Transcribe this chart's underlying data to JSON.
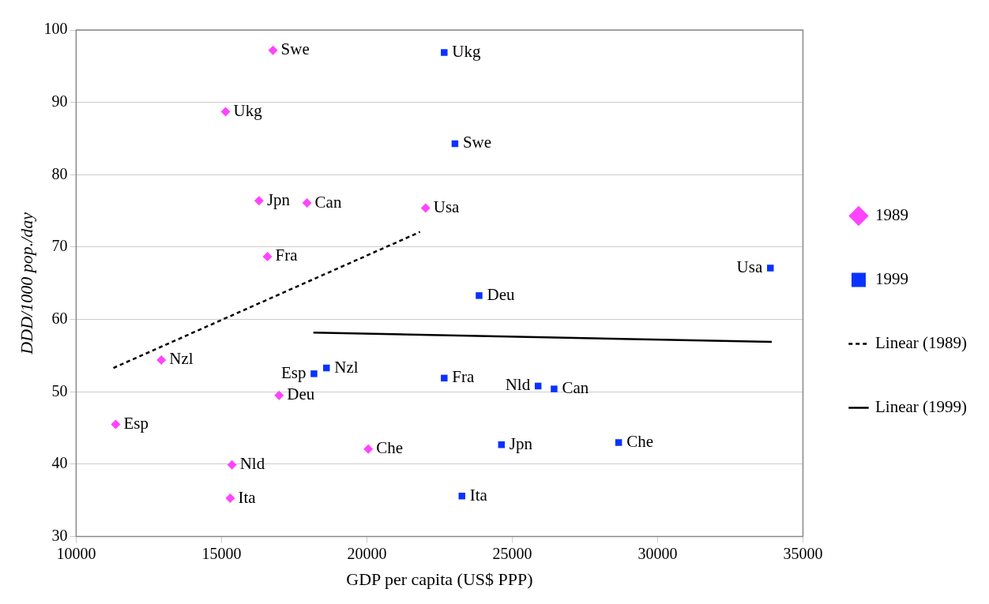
{
  "chart_data": {
    "type": "scatter",
    "xlabel": "GDP per capita (US$ PPP)",
    "ylabel": "DDD/1000 pop./day",
    "xlim": [
      10000,
      35000
    ],
    "xticks": [
      10000,
      15000,
      20000,
      25000,
      30000,
      35000
    ],
    "ylim": [
      30,
      100
    ],
    "yticks": [
      30,
      40,
      50,
      60,
      70,
      80,
      90,
      100
    ],
    "grid": "y",
    "legend": "right",
    "series": [
      {
        "name": "1989",
        "marker": "diamond",
        "color": "#ff44ff",
        "x": [
          16770,
          15140,
          16290,
          17940,
          22020,
          16580,
          12930,
          16980,
          11360,
          20050,
          15360,
          15300
        ],
        "values": [
          97.2,
          88.7,
          76.4,
          76.1,
          75.4,
          68.7,
          54.4,
          49.5,
          45.5,
          42.1,
          39.9,
          35.3
        ]
      },
      {
        "name": "1999",
        "marker": "square",
        "color": "#0a32ff",
        "x": [
          22660,
          23030,
          33880,
          23860,
          18610,
          18180,
          22660,
          25890,
          26440,
          28660,
          24630,
          23270
        ],
        "values": [
          96.9,
          84.3,
          67.1,
          63.3,
          53.3,
          52.5,
          51.9,
          50.8,
          50.4,
          43.0,
          42.7,
          35.6
        ]
      },
      {
        "name": "Linear (1989)",
        "type": "line",
        "marker": "none",
        "line_style": "dashed",
        "color": "#000000",
        "x": [
          11280,
          21830
        ],
        "values": [
          53.3,
          72.1
        ]
      },
      {
        "name": "Linear (1999)",
        "type": "line",
        "marker": "none",
        "line_style": "solid",
        "color": "#000000",
        "x": [
          18160,
          33930
        ],
        "values": [
          58.2,
          56.9
        ]
      }
    ],
    "annotations": [
      {
        "text": "Swe",
        "x": 16770,
        "y": 97.2
      },
      {
        "text": "Ukg",
        "x": 15140,
        "y": 88.7
      },
      {
        "text": "Jpn",
        "x": 16290,
        "y": 76.4
      },
      {
        "text": "Can",
        "x": 17940,
        "y": 76.1
      },
      {
        "text": "Usa",
        "x": 22020,
        "y": 75.4
      },
      {
        "text": "Fra",
        "x": 16580,
        "y": 68.7
      },
      {
        "text": "Nzl",
        "x": 12930,
        "y": 54.4
      },
      {
        "text": "Deu",
        "x": 16980,
        "y": 49.5
      },
      {
        "text": "Esp",
        "x": 11360,
        "y": 45.5
      },
      {
        "text": "Che",
        "x": 20050,
        "y": 42.1
      },
      {
        "text": "Nld",
        "x": 15360,
        "y": 39.9
      },
      {
        "text": "Ita",
        "x": 15300,
        "y": 35.3
      },
      {
        "text": "Ukg",
        "x": 22660,
        "y": 96.9
      },
      {
        "text": "Swe",
        "x": 23030,
        "y": 84.3
      },
      {
        "text": "Usa",
        "x": 33880,
        "y": 67.1
      },
      {
        "text": "Deu",
        "x": 23860,
        "y": 63.3
      },
      {
        "text": "Nzl",
        "x": 18610,
        "y": 53.3
      },
      {
        "text": "Esp",
        "x": 18180,
        "y": 52.5
      },
      {
        "text": "Fra",
        "x": 22660,
        "y": 51.9
      },
      {
        "text": "Nld",
        "x": 25890,
        "y": 50.8
      },
      {
        "text": "Can",
        "x": 26440,
        "y": 50.4
      },
      {
        "text": "Che",
        "x": 28660,
        "y": 43.0
      },
      {
        "text": "Jpn",
        "x": 24630,
        "y": 42.7
      },
      {
        "text": "Ita",
        "x": 23270,
        "y": 35.6
      }
    ]
  }
}
